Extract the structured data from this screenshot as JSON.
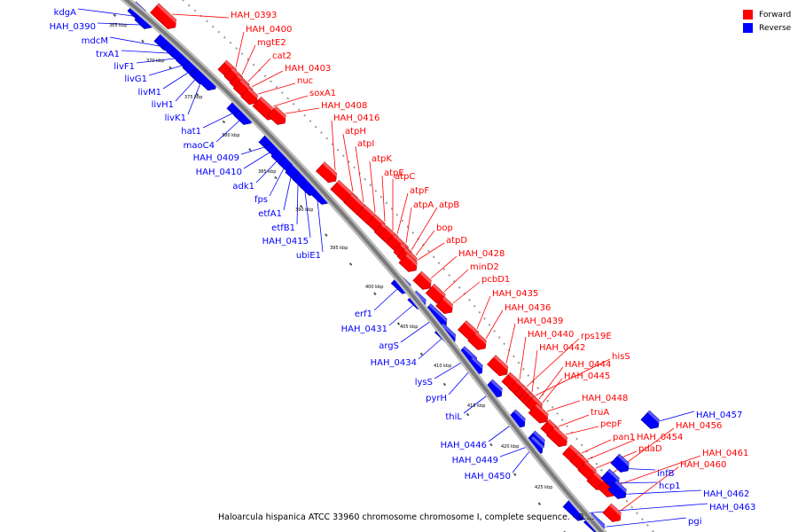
{
  "caption": "Haloarcula hispanica ATCC 33960 chromosome chromosome I, complete sequence. - 0....",
  "legend": [
    {
      "label": "Forward",
      "color": "#ff0000"
    },
    {
      "label": "Reverse",
      "color": "#0000ff"
    }
  ],
  "colors": {
    "forward": "#ff0000",
    "reverse": "#0000ff",
    "backbone": "#7a7a7a"
  },
  "ticks": [
    "365 kbp",
    "370 kbp",
    "375 kbp",
    "380 kbp",
    "385 kbp",
    "390 kbp",
    "395 kbp",
    "400 kbp",
    "405 kbp",
    "410 kbp",
    "415 kbp",
    "420 kbp",
    "425 kbp"
  ],
  "forward_genes": [
    "HAH_0393",
    "HAH_0400",
    "mgtE2",
    "cat2",
    "HAH_0403",
    "nuc",
    "soxA1",
    "HAH_0408",
    "HAH_0416",
    "atpH",
    "atpI",
    "atpK",
    "atpE",
    "atpC",
    "atpF",
    "atpA",
    "atpB",
    "bop",
    "atpD",
    "HAH_0428",
    "minD2",
    "pcbD1",
    "HAH_0435",
    "HAH_0436",
    "HAH_0439",
    "HAH_0440",
    "rps19E",
    "HAH_0442",
    "hisS",
    "HAH_0444",
    "HAH_0445",
    "HAH_0448",
    "truA",
    "pepF",
    "pan1",
    "HAH_0454",
    "pdaD",
    "HAH_0456",
    "HAH_0461",
    "HAH_0460"
  ],
  "reverse_genes": [
    "kdgA",
    "HAH_0390",
    "mdcM",
    "trxA1",
    "livF1",
    "livG1",
    "livM1",
    "livH1",
    "livK1",
    "hat1",
    "maoC4",
    "HAH_0409",
    "HAH_0410",
    "adk1",
    "fps",
    "etfA1",
    "etfB1",
    "HAH_0415",
    "ubiE1",
    "erf1",
    "HAH_0431",
    "argS",
    "HAH_0434",
    "lysS",
    "pyrH",
    "thiL",
    "HAH_0446",
    "HAH_0449",
    "HAH_0450",
    "HAH_0457",
    "infB",
    "hcp1",
    "HAH_0462",
    "HAH_0463",
    "pgi"
  ]
}
